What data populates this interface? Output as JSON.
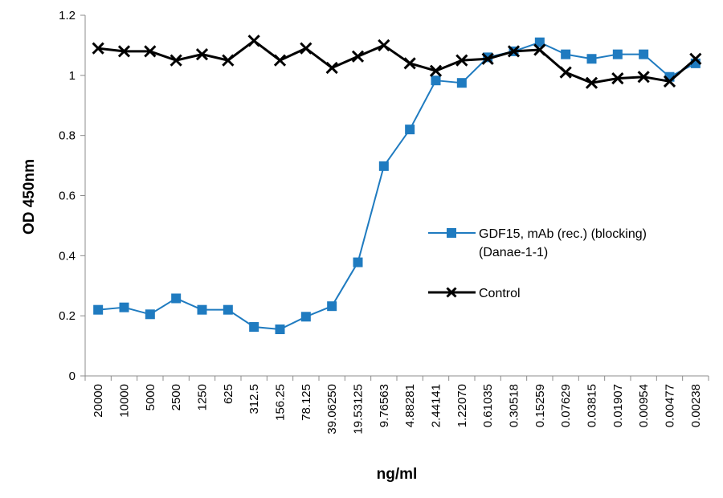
{
  "chart_data": {
    "type": "line",
    "title": "",
    "xlabel": "ng/ml",
    "ylabel": "OD 450nm",
    "ylim": [
      0,
      1.2
    ],
    "yticks": [
      "0",
      "0.2",
      "0.4",
      "0.6",
      "0.8",
      "1",
      "1.2"
    ],
    "categories": [
      "20000",
      "10000",
      "5000",
      "2500",
      "1250",
      "625",
      "312.5",
      "156.25",
      "78.125",
      "39.06250",
      "19.53125",
      "9.76563",
      "4.88281",
      "2.44141",
      "1.22070",
      "0.61035",
      "0.30518",
      "0.15259",
      "0.07629",
      "0.03815",
      "0.01907",
      "0.00954",
      "0.00477",
      "0.00238"
    ],
    "series": [
      {
        "name": "GDF15, mAb (rec.) (blocking) (Danae-1-1)",
        "legend_lines": [
          "GDF15, mAb (rec.) (blocking)",
          "(Danae-1-1)"
        ],
        "color": "#1f7bc0",
        "marker": "square",
        "values": [
          0.22,
          0.228,
          0.205,
          0.258,
          0.22,
          0.22,
          0.163,
          0.155,
          0.197,
          0.232,
          0.378,
          0.698,
          0.82,
          0.983,
          0.975,
          1.06,
          1.08,
          1.11,
          1.07,
          1.055,
          1.07,
          1.07,
          0.995,
          1.04
        ]
      },
      {
        "name": "Control",
        "legend_lines": [
          "Control"
        ],
        "color": "#000000",
        "marker": "x",
        "values": [
          1.09,
          1.08,
          1.08,
          1.05,
          1.07,
          1.05,
          1.115,
          1.05,
          1.09,
          1.025,
          1.063,
          1.1,
          1.04,
          1.015,
          1.05,
          1.055,
          1.08,
          1.085,
          1.01,
          0.975,
          0.99,
          0.995,
          0.98,
          1.055
        ]
      }
    ]
  }
}
